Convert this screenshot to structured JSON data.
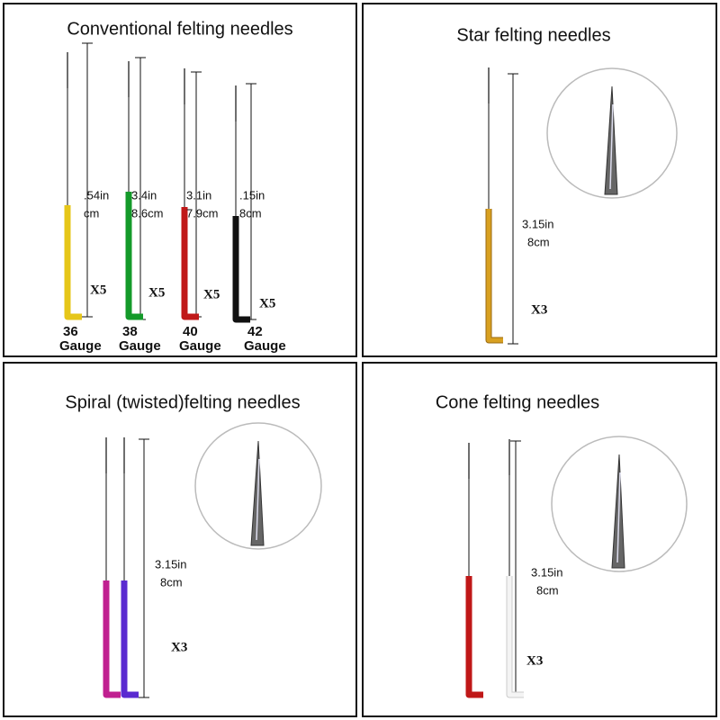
{
  "panels": [
    {
      "title": "Conventional felting needles",
      "needles": [
        {
          "length_in": ".54in",
          "length_cm": "cm",
          "quantity": "X5",
          "gauge": "36",
          "gauge_label": "Gauge"
        },
        {
          "length_in": "3.4in",
          "length_cm": "8.6cm",
          "quantity": "X5",
          "gauge": "38",
          "gauge_label": "Gauge"
        },
        {
          "length_in": "3.1in",
          "length_cm": "7.9cm",
          "quantity": "X5",
          "gauge": "40",
          "gauge_label": "Gauge"
        },
        {
          "length_in": ".15in",
          "length_cm": "8cm",
          "quantity": "X5",
          "gauge": "42",
          "gauge_label": "Gauge"
        }
      ]
    },
    {
      "title": "Star felting needles",
      "length_in": "3.15in",
      "length_cm": "8cm",
      "quantity": "X3"
    },
    {
      "title": "Spiral (twisted)felting needles",
      "length_in": "3.15in",
      "length_cm": "8cm",
      "quantity": "X3"
    },
    {
      "title": "Cone felting needles",
      "length_in": "3.15in",
      "length_cm": "8cm",
      "quantity": "X3"
    }
  ]
}
